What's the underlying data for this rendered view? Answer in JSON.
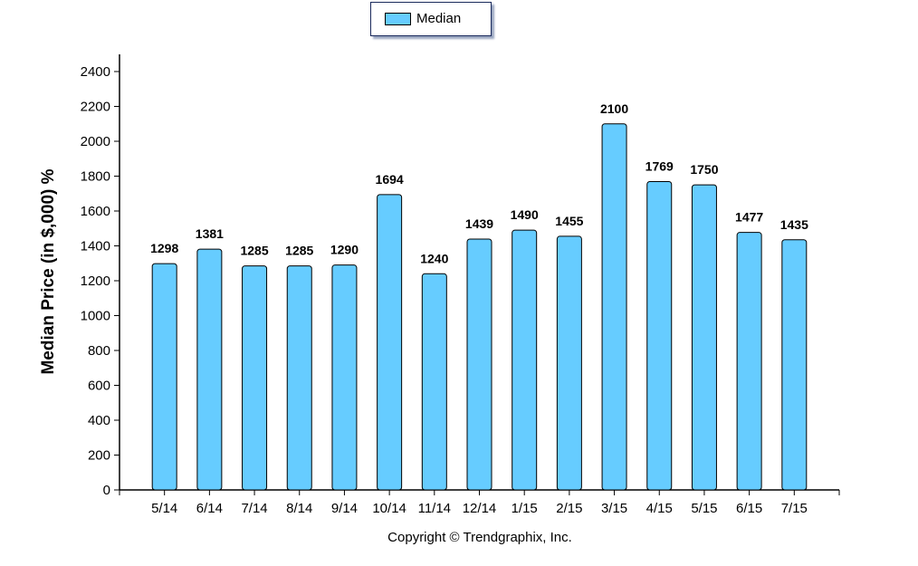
{
  "chart_data": {
    "type": "bar",
    "categories": [
      "5/14",
      "6/14",
      "7/14",
      "8/14",
      "9/14",
      "10/14",
      "11/14",
      "12/14",
      "1/15",
      "2/15",
      "3/15",
      "4/15",
      "5/15",
      "6/15",
      "7/15"
    ],
    "series": [
      {
        "name": "Median",
        "values": [
          1298,
          1381,
          1285,
          1285,
          1290,
          1694,
          1240,
          1439,
          1490,
          1455,
          2100,
          1769,
          1750,
          1477,
          1435
        ]
      }
    ],
    "ylabel": "Median Price (in $,000) %",
    "ylim": [
      0,
      2400
    ],
    "yticks": [
      0,
      200,
      400,
      600,
      800,
      1000,
      1200,
      1400,
      1600,
      1800,
      2000,
      2200,
      2400
    ],
    "grid": false,
    "legend_position": "top-center"
  },
  "colors": {
    "bar_fill": "#66ccff",
    "bar_stroke": "#000000"
  },
  "footer": {
    "copyright": "Copyright © Trendgraphix, Inc."
  }
}
